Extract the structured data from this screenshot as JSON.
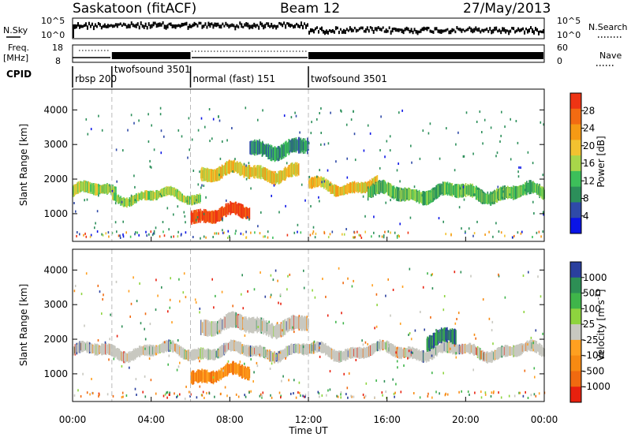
{
  "header": {
    "site": "Saskatoon (fitACF)",
    "beam": "Beam 12",
    "date": "27/May/2013"
  },
  "top_panels": {
    "nsky_label": "N.Sky",
    "nsky_ticks": [
      "10^5",
      "10^0"
    ],
    "nsearch_label": "N.Search",
    "nsearch_ticks": [
      "10^5",
      "10^0"
    ],
    "freq_label_1": "Freq.",
    "freq_label_2": "[MHz]",
    "freq_ticks": [
      "18",
      "8"
    ],
    "nave_label": "Nave",
    "nave_ticks": [
      "60",
      "0"
    ],
    "cpid_label": "CPID"
  },
  "chart_data": [
    {
      "type": "cpid-timeline",
      "modes": [
        {
          "label": "rbsp 200",
          "start": 0.0,
          "end": 2.0
        },
        {
          "label": "twofsound 3501",
          "start": 2.0,
          "end": 6.0
        },
        {
          "label": "normal (fast) 151",
          "start": 6.0,
          "end": 12.0
        },
        {
          "label": "twofsound 3501",
          "start": 12.0,
          "end": 24.0
        }
      ]
    },
    {
      "type": "heatmap",
      "panel": "power",
      "xlabel": "Time UT",
      "ylabel": "Slant Range [km]",
      "xlim": [
        0,
        24
      ],
      "ylim": [
        200,
        4600
      ],
      "x_ticks": [
        "00:00",
        "04:00",
        "08:00",
        "12:00",
        "16:00",
        "20:00",
        "00:00"
      ],
      "y_ticks": [
        1000,
        2000,
        3000,
        4000
      ],
      "colorbar_label": "Power [dB]",
      "colorbar_ticks": [
        4,
        8,
        12,
        16,
        20,
        24,
        28
      ],
      "colorbar_colors": [
        "#0a14e6",
        "#2f4aa8",
        "#2c8f5a",
        "#3dbf5a",
        "#a8d64a",
        "#f2c230",
        "#f59a14",
        "#f26b12",
        "#ee3414"
      ],
      "echo_bands": [
        {
          "t_start": 0.0,
          "t_end": 2.2,
          "range_center": 1650,
          "width": 300,
          "power": 14
        },
        {
          "t_start": 2.0,
          "t_end": 6.5,
          "range_center": 1500,
          "width": 250,
          "power": 16
        },
        {
          "t_start": 6.0,
          "t_end": 9.0,
          "range_center": 1000,
          "width": 350,
          "power": 28
        },
        {
          "t_start": 6.5,
          "t_end": 11.5,
          "range_center": 2200,
          "width": 350,
          "power": 18
        },
        {
          "t_start": 9.0,
          "t_end": 12.0,
          "range_center": 2900,
          "width": 400,
          "power": 10
        },
        {
          "t_start": 12.0,
          "t_end": 15.5,
          "range_center": 1800,
          "width": 300,
          "power": 18
        },
        {
          "t_start": 15.0,
          "t_end": 24.0,
          "range_center": 1600,
          "width": 350,
          "power": 12
        }
      ]
    },
    {
      "type": "heatmap",
      "panel": "velocity",
      "xlabel": "Time UT",
      "ylabel": "Slant Range [km]",
      "xlim": [
        0,
        24
      ],
      "ylim": [
        200,
        4600
      ],
      "x_ticks": [
        "00:00",
        "04:00",
        "08:00",
        "12:00",
        "16:00",
        "20:00",
        "00:00"
      ],
      "y_ticks": [
        1000,
        2000,
        3000,
        4000
      ],
      "colorbar_label": "Velocity [m s^-1]",
      "colorbar_ticks": [
        "1000",
        "500",
        "100",
        "25",
        "-25",
        "-100",
        "-500",
        "-1000"
      ],
      "colorbar_colors": [
        "#2a3f9e",
        "#2d8f55",
        "#3fb54a",
        "#8ed43e",
        "#c8c8c0",
        "#ffa020",
        "#f78a12",
        "#f06a10",
        "#e8200e"
      ],
      "echo_bands": [
        {
          "t_start": 0.0,
          "t_end": 24.0,
          "range_center": 1650,
          "width": 300,
          "velocity": 0
        },
        {
          "t_start": 6.5,
          "t_end": 12.0,
          "range_center": 2400,
          "width": 400,
          "velocity": 0
        },
        {
          "t_start": 6.0,
          "t_end": 9.0,
          "range_center": 1000,
          "width": 350,
          "velocity": -300
        },
        {
          "t_start": 18.0,
          "t_end": 19.5,
          "range_center": 2000,
          "width": 400,
          "velocity": 400
        }
      ]
    }
  ]
}
